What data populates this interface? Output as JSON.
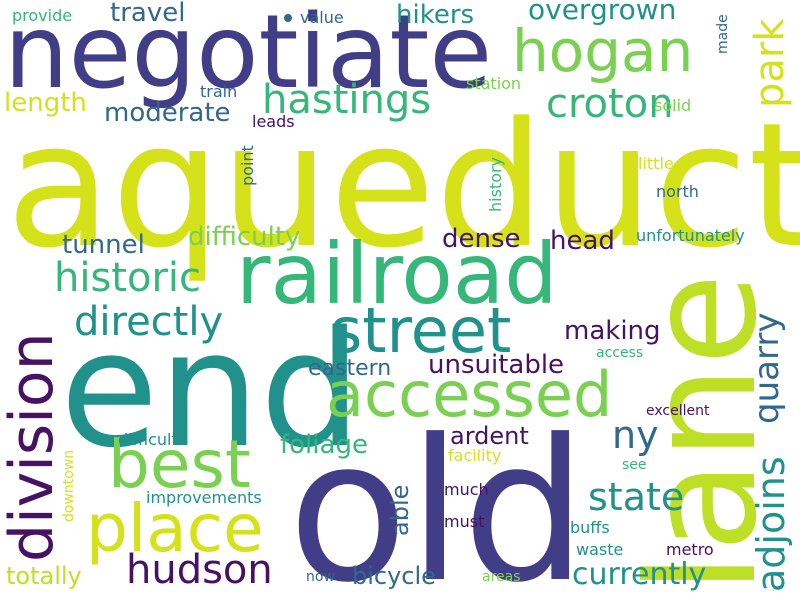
{
  "words": {
    "aqueduct": "aqueduct",
    "negotiate": "negotiate",
    "end": "end",
    "old": "old",
    "lane": "lane",
    "railroad": "railroad",
    "street": "street",
    "accessed": "accessed",
    "division": "division",
    "best": "best",
    "place": "place",
    "hogan": "hogan",
    "hastings": "hastings",
    "croton": "croton",
    "park": "park",
    "hudson": "hudson",
    "directly": "directly",
    "historic": "historic",
    "state": "state",
    "adjoins": "adjoins",
    "quarry": "quarry",
    "ny": "ny",
    "currently": "currently",
    "overgrown": "overgrown",
    "travel": "travel",
    "hikers": "hikers",
    "moderate": "moderate",
    "length": "length",
    "difficulty": "difficulty",
    "dense": "dense",
    "head": "head",
    "tunnel": "tunnel",
    "making": "making",
    "unsuitable": "unsuitable",
    "eastern": "eastern",
    "foliage": "foliage",
    "ardent": "ardent",
    "able": "able",
    "bicycle": "bicycle",
    "totally": "totally",
    "provide": "provide",
    "value": "value",
    "made": "made",
    "train": "train",
    "station": "station",
    "solid": "solid",
    "leads": "leads",
    "point": "point",
    "history": "history",
    "little": "little",
    "north": "north",
    "unfortunately": "unfortunately",
    "access": "access",
    "excellent": "excellent",
    "difficult": "difficult",
    "facility": "facility",
    "see": "see",
    "improvements": "improvements",
    "much": "much",
    "must": "must",
    "buffs": "buffs",
    "waste": "waste",
    "metro": "metro",
    "downtown": "downtown",
    "now": "now",
    "areas": "areas"
  },
  "palette": {
    "background": "#ffffff",
    "yellow_green": "#d5e21a",
    "indigo": "#423d87",
    "teal": "#21918c",
    "sea_green": "#35b779",
    "light_green": "#7ad151",
    "deep_purple": "#471164",
    "blue_slate": "#31688e",
    "pale_yellow": "#bddf26"
  }
}
